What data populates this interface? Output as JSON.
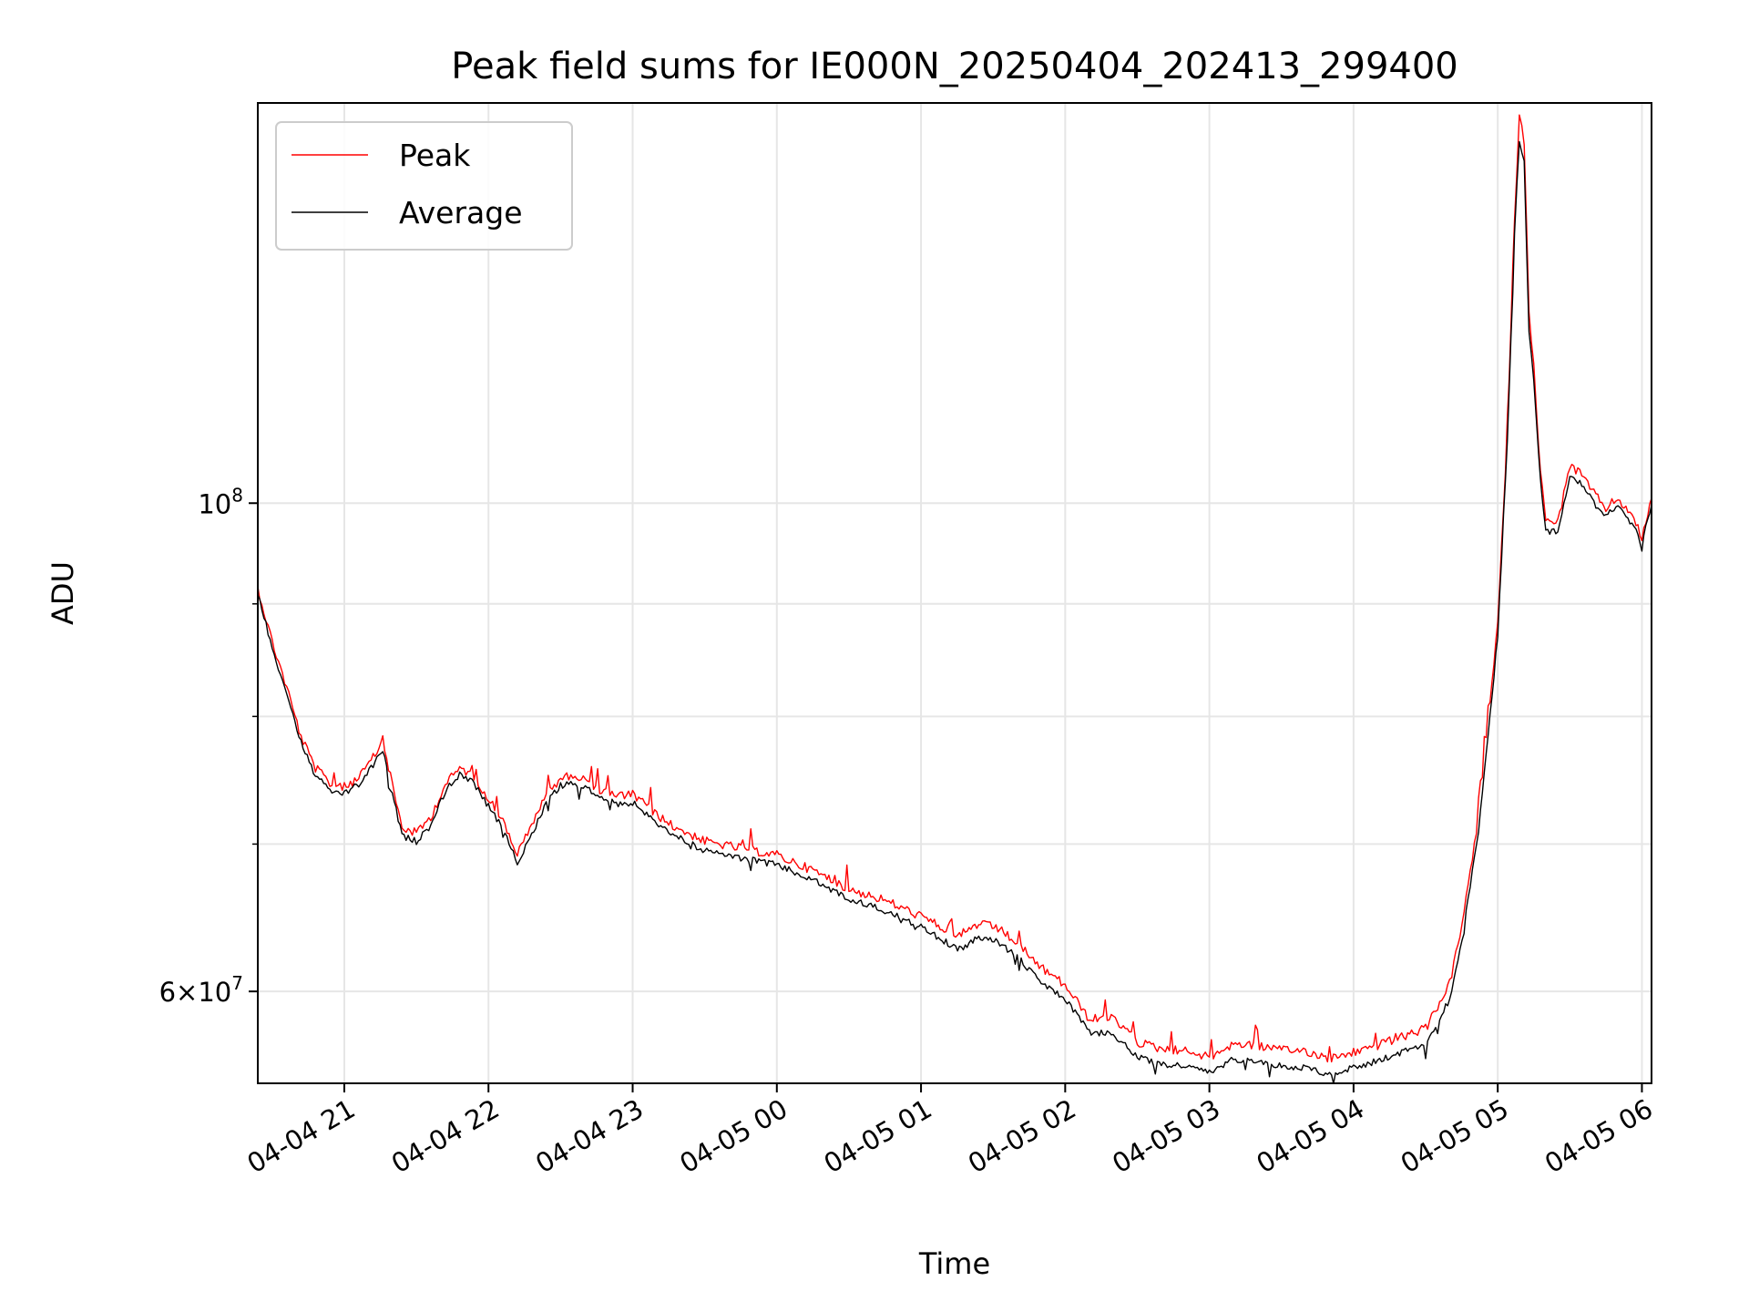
{
  "chart_data": {
    "type": "line",
    "title": "Peak field sums for IE000N_20250404_202413_299400",
    "xlabel": "Time",
    "ylabel": "ADU",
    "y_scale": "log",
    "ylim": [
      54500000,
      152000000
    ],
    "xlim": [
      "04-04 20:24",
      "04-05 06:04"
    ],
    "x_ticks": [
      "04-04 21",
      "04-04 22",
      "04-04 23",
      "04-05 00",
      "04-05 01",
      "04-05 02",
      "04-05 03",
      "04-05 04",
      "04-05 05",
      "04-05 06"
    ],
    "x_tick_times": [
      "04-04 21:00",
      "04-04 22:00",
      "04-04 23:00",
      "04-05 00:00",
      "04-05 01:00",
      "04-05 02:00",
      "04-05 03:00",
      "04-05 04:00",
      "04-05 05:00",
      "04-05 06:00"
    ],
    "y_ticks": [
      {
        "value": 100000000,
        "label": "10",
        "exp": "8"
      },
      {
        "value": 60000000,
        "label": "6×10",
        "exp": "7"
      }
    ],
    "y_minor_ticks": [
      70000000,
      80000000,
      90000000
    ],
    "grid": true,
    "legend_position": "top-left",
    "series": [
      {
        "name": "Peak",
        "color": "#ff0000",
        "x": [
          "04-04 20:24",
          "04-04 20:30",
          "04-04 20:36",
          "04-04 20:42",
          "04-04 20:48",
          "04-04 20:54",
          "04-04 21:00",
          "04-04 21:06",
          "04-04 21:12",
          "04-04 21:16",
          "04-04 21:20",
          "04-04 21:24",
          "04-04 21:30",
          "04-04 21:36",
          "04-04 21:42",
          "04-04 21:48",
          "04-04 21:54",
          "04-04 22:00",
          "04-04 22:06",
          "04-04 22:12",
          "04-04 22:18",
          "04-04 22:24",
          "04-04 22:30",
          "04-04 22:36",
          "04-04 22:42",
          "04-04 22:48",
          "04-04 22:54",
          "04-04 23:00",
          "04-04 23:15",
          "04-04 23:30",
          "04-04 23:45",
          "04-05 00:00",
          "04-05 00:15",
          "04-05 00:30",
          "04-05 00:45",
          "04-05 01:00",
          "04-05 01:08",
          "04-05 01:16",
          "04-05 01:24",
          "04-05 01:32",
          "04-05 01:40",
          "04-05 01:50",
          "04-05 02:00",
          "04-05 02:10",
          "04-05 02:20",
          "04-05 02:30",
          "04-05 02:40",
          "04-05 02:50",
          "04-05 03:00",
          "04-05 03:10",
          "04-05 03:20",
          "04-05 03:30",
          "04-05 03:40",
          "04-05 03:50",
          "04-05 04:00",
          "04-05 04:10",
          "04-05 04:20",
          "04-05 04:30",
          "04-05 04:40",
          "04-05 04:46",
          "04-05 04:52",
          "04-05 05:00",
          "04-05 05:04",
          "04-05 05:07",
          "04-05 05:09",
          "04-05 05:11",
          "04-05 05:13",
          "04-05 05:15",
          "04-05 05:17",
          "04-05 05:20",
          "04-05 05:25",
          "04-05 05:30",
          "04-05 05:35",
          "04-05 05:40",
          "04-05 05:45",
          "04-05 05:50",
          "04-05 05:55",
          "04-05 06:00",
          "04-05 06:04"
        ],
        "y": [
          91500000,
          86500000,
          82500000,
          78300000,
          75800000,
          74600000,
          74300000,
          75000000,
          76600000,
          78000000,
          74500000,
          71200000,
          70800000,
          72000000,
          74500000,
          75800000,
          75200000,
          73400000,
          71700000,
          69300000,
          71300000,
          73700000,
          75000000,
          75200000,
          74700000,
          73900000,
          73600000,
          73700000,
          71500000,
          70200000,
          69700000,
          69200000,
          68100000,
          66800000,
          66000000,
          64900000,
          64200000,
          63600000,
          64400000,
          64100000,
          63100000,
          61500000,
          60400000,
          58300000,
          58300000,
          56900000,
          56500000,
          56400000,
          56000000,
          56800000,
          56700000,
          56400000,
          56400000,
          55900000,
          56300000,
          56700000,
          57200000,
          57700000,
          60500000,
          65000000,
          72000000,
          88000000,
          108000000,
          135000000,
          150000000,
          146000000,
          122000000,
          116000000,
          106000000,
          98000000,
          98000000,
          104000000,
          103000000,
          101000000,
          99500000,
          100500000,
          99000000,
          96500000,
          100500000
        ]
      },
      {
        "name": "Average",
        "color": "#000000",
        "x": [
          "04-04 20:24",
          "04-04 20:30",
          "04-04 20:36",
          "04-04 20:42",
          "04-04 20:48",
          "04-04 20:54",
          "04-04 21:00",
          "04-04 21:06",
          "04-04 21:12",
          "04-04 21:16",
          "04-04 21:20",
          "04-04 21:24",
          "04-04 21:30",
          "04-04 21:36",
          "04-04 21:42",
          "04-04 21:48",
          "04-04 21:54",
          "04-04 22:00",
          "04-04 22:06",
          "04-04 22:12",
          "04-04 22:18",
          "04-04 22:24",
          "04-04 22:30",
          "04-04 22:36",
          "04-04 22:42",
          "04-04 22:48",
          "04-04 22:54",
          "04-04 23:00",
          "04-04 23:15",
          "04-04 23:30",
          "04-04 23:45",
          "04-05 00:00",
          "04-05 00:15",
          "04-05 00:30",
          "04-05 00:45",
          "04-05 01:00",
          "04-05 01:08",
          "04-05 01:16",
          "04-05 01:24",
          "04-05 01:32",
          "04-05 01:40",
          "04-05 01:50",
          "04-05 02:00",
          "04-05 02:10",
          "04-05 02:20",
          "04-05 02:30",
          "04-05 02:40",
          "04-05 02:50",
          "04-05 03:00",
          "04-05 03:10",
          "04-05 03:20",
          "04-05 03:30",
          "04-05 03:40",
          "04-05 03:50",
          "04-05 04:00",
          "04-05 04:10",
          "04-05 04:20",
          "04-05 04:30",
          "04-05 04:40",
          "04-05 04:46",
          "04-05 04:52",
          "04-05 05:00",
          "04-05 05:04",
          "04-05 05:07",
          "04-05 05:09",
          "04-05 05:11",
          "04-05 05:13",
          "04-05 05:15",
          "04-05 05:17",
          "04-05 05:20",
          "04-05 05:25",
          "04-05 05:30",
          "04-05 05:35",
          "04-05 05:40",
          "04-05 05:45",
          "04-05 05:50",
          "04-05 05:55",
          "04-05 06:00",
          "04-05 06:04"
        ],
        "y": [
          91000000,
          86000000,
          82000000,
          77800000,
          75200000,
          74000000,
          73800000,
          74500000,
          76000000,
          77300000,
          73800000,
          70600000,
          70200000,
          71400000,
          74000000,
          75300000,
          74600000,
          72800000,
          71100000,
          68700000,
          70700000,
          73100000,
          74400000,
          74600000,
          74100000,
          73300000,
          73000000,
          73100000,
          70900000,
          69500000,
          69000000,
          68500000,
          67400000,
          66100000,
          65300000,
          64200000,
          63400000,
          62700000,
          63500000,
          63200000,
          62200000,
          60600000,
          59500000,
          57500000,
          57400000,
          56000000,
          55600000,
          55500000,
          55100000,
          55900000,
          55800000,
          55500000,
          55400000,
          55000000,
          55400000,
          55800000,
          56300000,
          56800000,
          59500000,
          64200000,
          71000000,
          87000000,
          107000000,
          133000000,
          146000000,
          143000000,
          120000000,
          114000000,
          105000000,
          97000000,
          97200000,
          103000000,
          102000000,
          100000000,
          98800000,
          99800000,
          98300000,
          95800000,
          99800000
        ]
      }
    ]
  }
}
